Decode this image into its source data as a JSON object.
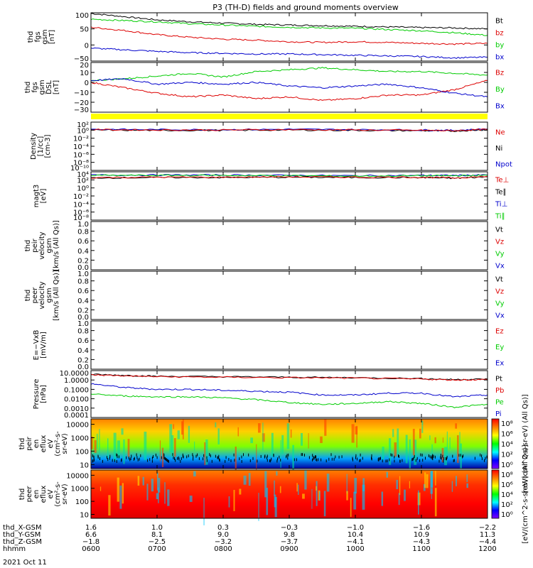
{
  "title": "P3 (TH-D) fields and ground moments overview",
  "date_label": "2021 Oct 11",
  "chart_data": [
    {
      "type": "line",
      "panel": "fgs-gsm",
      "ylabel": [
        "thd",
        "fgs",
        "gsm",
        "[nT]"
      ],
      "yticks": [
        "100",
        "50",
        "0",
        "−50"
      ],
      "ylim": [
        -50,
        100
      ],
      "legend": [
        {
          "name": "Bt",
          "color": "#000000"
        },
        {
          "name": "bz",
          "color": "#dd0000"
        },
        {
          "name": "by",
          "color": "#00cc00"
        },
        {
          "name": "bx",
          "color": "#0000cc"
        }
      ],
      "series": [
        {
          "name": "Bt",
          "color": "#000000",
          "x": [
            6.0,
            6.5,
            7.0,
            7.5,
            8.0,
            8.5,
            9.0,
            9.5,
            10.0,
            10.5,
            11.0,
            11.5,
            12.0
          ],
          "y": [
            98,
            88,
            78,
            72,
            68,
            64,
            62,
            60,
            58,
            56,
            54,
            53,
            50
          ]
        },
        {
          "name": "bz",
          "color": "#dd0000",
          "x": [
            6.0,
            6.5,
            7.0,
            7.5,
            8.0,
            8.5,
            9.0,
            9.5,
            10.0,
            10.5,
            11.0,
            11.5,
            12.0
          ],
          "y": [
            55,
            45,
            32,
            24,
            18,
            15,
            10,
            8,
            10,
            8,
            5,
            3,
            5
          ]
        },
        {
          "name": "by",
          "color": "#00cc00",
          "x": [
            6.0,
            6.5,
            7.0,
            7.5,
            8.0,
            8.5,
            9.0,
            9.5,
            10.0,
            10.5,
            11.0,
            11.5,
            12.0
          ],
          "y": [
            80,
            76,
            72,
            66,
            62,
            58,
            55,
            53,
            52,
            48,
            44,
            38,
            30
          ]
        },
        {
          "name": "bx",
          "color": "#0000cc",
          "x": [
            6.0,
            6.5,
            7.0,
            7.5,
            8.0,
            8.5,
            9.0,
            9.5,
            10.0,
            10.5,
            11.0,
            11.5,
            12.0
          ],
          "y": [
            -10,
            -15,
            -20,
            -24,
            -26,
            -28,
            -28,
            -30,
            -32,
            -34,
            -36,
            -40,
            -38
          ]
        }
      ]
    },
    {
      "type": "line",
      "panel": "fgs-gsm-dsl",
      "ylabel": [
        "thd",
        "fgs",
        "gsm",
        "DSL",
        "[nT]"
      ],
      "yticks": [
        "20",
        "10",
        "0",
        "−10",
        "−20",
        "−30"
      ],
      "ylim": [
        -35,
        20
      ],
      "legend": [
        {
          "name": "Bz",
          "color": "#dd0000"
        },
        {
          "name": "By",
          "color": "#00cc00"
        },
        {
          "name": "Bx",
          "color": "#0000cc"
        }
      ],
      "series": [
        {
          "name": "Bz",
          "color": "#dd0000",
          "x": [
            6.0,
            6.5,
            7.0,
            7.5,
            8.0,
            8.5,
            9.0,
            9.5,
            10.0,
            10.5,
            11.0,
            11.5,
            12.0
          ],
          "y": [
            -2,
            -8,
            -14,
            -18,
            -16,
            -20,
            -18,
            -22,
            -20,
            -16,
            -16,
            -10,
            0
          ]
        },
        {
          "name": "By",
          "color": "#00cc00",
          "x": [
            6.0,
            6.5,
            7.0,
            7.5,
            8.0,
            8.5,
            9.0,
            9.5,
            10.0,
            10.5,
            11.0,
            11.5,
            12.0
          ],
          "y": [
            0,
            2,
            5,
            8,
            4,
            10,
            12,
            14,
            12,
            10,
            10,
            8,
            6
          ]
        },
        {
          "name": "Bx",
          "color": "#0000cc",
          "x": [
            6.0,
            6.5,
            7.0,
            7.5,
            8.0,
            8.5,
            9.0,
            9.5,
            10.0,
            10.5,
            11.0,
            11.5,
            12.0
          ],
          "y": [
            0,
            2,
            -4,
            -2,
            -4,
            -2,
            -6,
            -8,
            -6,
            -4,
            -8,
            -14,
            -18
          ]
        }
      ]
    },
    {
      "type": "line",
      "panel": "density",
      "log": true,
      "ylabel": [
        "Density",
        "[1/cc]",
        "[cm-3]"
      ],
      "yticks": [
        "10²",
        "10⁰",
        "10⁻²",
        "10⁻⁴",
        "10⁻⁶",
        "10⁻⁸",
        "10⁻¹⁰"
      ],
      "ylim": [
        -11,
        2.5
      ],
      "legend": [
        {
          "name": "Ne",
          "color": "#dd0000"
        },
        {
          "name": "Ni",
          "color": "#000000"
        },
        {
          "name": "Npot",
          "color": "#0000cc"
        }
      ],
      "series": [
        {
          "name": "Ni",
          "color": "#000000",
          "x": [
            6.0,
            7.0,
            8.0,
            9.0,
            10.0,
            11.0,
            11.5,
            12.0
          ],
          "y": [
            0.3,
            0.2,
            0.2,
            0.3,
            0.2,
            0.1,
            0.0,
            0.4
          ]
        },
        {
          "name": "Npot",
          "color": "#0000cc",
          "x": [
            6.0,
            7.0,
            8.0,
            9.0,
            10.0,
            11.0,
            11.5,
            12.0
          ],
          "y": [
            0.5,
            0.4,
            0.4,
            0.5,
            0.4,
            0.3,
            0.2,
            0.6
          ]
        },
        {
          "name": "Ne",
          "color": "#dd0000",
          "x": [
            6.0,
            7.0,
            8.0,
            9.0,
            10.0,
            11.0,
            11.5,
            12.0
          ],
          "y": [
            0.4,
            0.3,
            0.3,
            0.4,
            0.3,
            0.2,
            0.1,
            0.5
          ]
        }
      ]
    },
    {
      "type": "line",
      "panel": "temperature",
      "log": true,
      "ylabel": [
        "magt3",
        "[eV]"
      ],
      "yticks": [
        "10⁴",
        "10²",
        "10⁰",
        "10⁻²",
        "10⁻⁴",
        "10⁻⁶",
        "10⁻⁸"
      ],
      "ylim": [
        -9,
        4.5
      ],
      "legend": [
        {
          "name": "Te⊥",
          "color": "#dd0000"
        },
        {
          "name": "Te∥",
          "color": "#000000"
        },
        {
          "name": "Ti⊥",
          "color": "#0000cc"
        },
        {
          "name": "Ti∥",
          "color": "#00cc00"
        }
      ],
      "series": [
        {
          "name": "Ti⊥",
          "color": "#0000cc",
          "x": [
            6.0,
            7.0,
            8.0,
            9.0,
            10.0,
            11.0,
            11.5,
            12.0
          ],
          "y": [
            3.6,
            3.6,
            3.6,
            3.5,
            3.4,
            3.5,
            3.5,
            3.6
          ]
        },
        {
          "name": "Ti∥",
          "color": "#00cc00",
          "x": [
            6.0,
            7.0,
            8.0,
            9.0,
            10.0,
            11.0,
            11.5,
            12.0
          ],
          "y": [
            3.5,
            3.5,
            3.5,
            3.4,
            3.3,
            3.4,
            3.4,
            3.5
          ]
        },
        {
          "name": "Te∥",
          "color": "#000000",
          "x": [
            6.0,
            7.0,
            8.0,
            9.0,
            10.0,
            11.0,
            11.5,
            12.0
          ],
          "y": [
            2.8,
            2.9,
            2.9,
            3.0,
            2.9,
            2.9,
            2.7,
            3.1
          ]
        },
        {
          "name": "Te⊥",
          "color": "#dd0000",
          "x": [
            6.0,
            7.0,
            8.0,
            9.0,
            10.0,
            11.0,
            11.5,
            12.0
          ],
          "y": [
            2.9,
            3.0,
            3.0,
            3.1,
            3.0,
            3.0,
            2.8,
            3.2
          ]
        }
      ]
    },
    {
      "type": "line",
      "panel": "velocity-peir",
      "ylabel": [
        "thd",
        "peir",
        "velocity",
        "gsm",
        "[km/s (All Qs)]"
      ],
      "yticks": [
        "1.0",
        "0.8",
        "0.6",
        "0.4",
        "0.2",
        "0.0"
      ],
      "ylim": [
        0,
        1
      ],
      "legend": [
        {
          "name": "Vt",
          "color": "#000000"
        },
        {
          "name": "Vz",
          "color": "#dd0000"
        },
        {
          "name": "Vy",
          "color": "#00cc00"
        },
        {
          "name": "Vx",
          "color": "#0000cc"
        }
      ],
      "series": []
    },
    {
      "type": "line",
      "panel": "velocity-peer",
      "ylabel": [
        "thd",
        "peer",
        "velocity",
        "gsm",
        "[km/s (All Qs)]"
      ],
      "yticks": [
        "1.0",
        "0.8",
        "0.6",
        "0.4",
        "0.2",
        "0.0"
      ],
      "ylim": [
        0,
        1
      ],
      "legend": [
        {
          "name": "Vt",
          "color": "#000000"
        },
        {
          "name": "Vz",
          "color": "#dd0000"
        },
        {
          "name": "Vy",
          "color": "#00cc00"
        },
        {
          "name": "Vx",
          "color": "#0000cc"
        }
      ],
      "series": []
    },
    {
      "type": "line",
      "panel": "efield",
      "ylabel": [
        "E=−VxB",
        "[mV/m]"
      ],
      "yticks": [
        "1.0",
        "0.8",
        "0.6",
        "0.4",
        "0.2",
        "0.0"
      ],
      "ylim": [
        0,
        1
      ],
      "legend": [
        {
          "name": "Ez",
          "color": "#dd0000"
        },
        {
          "name": "Ey",
          "color": "#00cc00"
        },
        {
          "name": "Ex",
          "color": "#0000cc"
        }
      ],
      "series": []
    },
    {
      "type": "line",
      "panel": "pressure",
      "log": true,
      "ylabel": [
        "Pressure",
        "[nPa]"
      ],
      "yticks": [
        "10.0000",
        "1.0000",
        "0.1000",
        "0.0100",
        "0.0010",
        "0.0001"
      ],
      "ylim": [
        -4,
        1
      ],
      "legend": [
        {
          "name": "Pt",
          "color": "#000000"
        },
        {
          "name": "Pb",
          "color": "#dd0000"
        },
        {
          "name": "Pe",
          "color": "#00cc00"
        },
        {
          "name": "Pi",
          "color": "#0000cc"
        }
      ],
      "series": [
        {
          "name": "Pt",
          "color": "#000000",
          "x": [
            6.0,
            6.5,
            7.0,
            8.0,
            9.0,
            10.0,
            11.0,
            11.5,
            12.0
          ],
          "y": [
            0.6,
            0.5,
            0.4,
            0.35,
            0.3,
            0.25,
            0.15,
            0.05,
            0.1
          ]
        },
        {
          "name": "Pb",
          "color": "#dd0000",
          "x": [
            6.0,
            6.5,
            7.0,
            8.0,
            9.0,
            10.0,
            11.0,
            11.5,
            12.0
          ],
          "y": [
            0.55,
            0.45,
            0.35,
            0.3,
            0.25,
            0.2,
            0.1,
            0.0,
            0.05
          ]
        },
        {
          "name": "Pi",
          "color": "#0000cc",
          "x": [
            6.0,
            6.5,
            7.0,
            7.5,
            8.0,
            8.5,
            9.0,
            9.5,
            10.0,
            10.5,
            11.0,
            11.5,
            12.0
          ],
          "y": [
            -0.4,
            -0.8,
            -1.0,
            -1.0,
            -1.1,
            -1.2,
            -1.3,
            -1.6,
            -1.6,
            -1.4,
            -1.4,
            -1.8,
            -1.6
          ]
        },
        {
          "name": "Pe",
          "color": "#00cc00",
          "x": [
            6.0,
            6.5,
            7.0,
            7.5,
            8.0,
            8.5,
            9.0,
            9.5,
            10.0,
            10.5,
            11.0,
            11.5,
            12.0
          ],
          "y": [
            -1.5,
            -1.7,
            -1.8,
            -1.8,
            -1.9,
            -2.1,
            -2.4,
            -2.6,
            -2.5,
            -2.3,
            -2.5,
            -2.9,
            -2.6
          ]
        }
      ]
    },
    {
      "type": "heatmap",
      "panel": "peir-spectrogram",
      "ylabel": [
        "thd",
        "peir",
        "en",
        "eflux",
        "eV",
        "(cm²-s-",
        "sr-eV)"
      ],
      "yticks": [
        "10000",
        "1000",
        "100",
        "10"
      ],
      "ylim_log": [
        0.7,
        4.4
      ],
      "colorbar_ticks": [
        "10⁸",
        "10⁶",
        "10⁴",
        "10²",
        "10⁰"
      ],
      "colorbar_label": "[eV/(cm^2-s-sr-eV) (All Qs)]"
    },
    {
      "type": "heatmap",
      "panel": "peer-spectrogram",
      "ylabel": [
        "thd",
        "peer",
        "en",
        "eflux",
        "eV",
        "(cm²-s-",
        "sr-eV)"
      ],
      "yticks": [
        "10000",
        "1000",
        "100",
        "10"
      ],
      "ylim_log": [
        0.7,
        4.4
      ],
      "colorbar_ticks": [
        "10⁸",
        "10⁶",
        "10⁴",
        "10²",
        "10⁰"
      ],
      "colorbar_label": "[eV/(cm^2-s-sr-eV) (All Qs)]"
    }
  ],
  "time_axis": {
    "xlim": [
      6.0,
      12.0
    ],
    "ticks": [
      6.0,
      7.0,
      8.0,
      9.0,
      10.0,
      11.0,
      12.0
    ],
    "rows": [
      {
        "name": "thd_X-GSM",
        "values": [
          "1.6",
          "1.0",
          "0.3",
          "−0.3",
          "−1.0",
          "−1.6",
          "−2.2"
        ]
      },
      {
        "name": "thd_Y-GSM",
        "values": [
          "6.6",
          "8.1",
          "9.0",
          "9.8",
          "10.4",
          "10.9",
          "11.3"
        ]
      },
      {
        "name": "thd_Z-GSM",
        "values": [
          "−1.8",
          "−2.5",
          "−3.2",
          "−3.7",
          "−4.1",
          "−4.3",
          "−4.4"
        ]
      },
      {
        "name": "hhmm",
        "values": [
          "0600",
          "0700",
          "0800",
          "0900",
          "1000",
          "1100",
          "1200"
        ]
      }
    ]
  },
  "colors": {
    "yellow_bar": "#ffff00",
    "spectrogram_scale": [
      "#7f00ff",
      "#0000ff",
      "#00ffff",
      "#00ff00",
      "#ffff00",
      "#ff8000",
      "#ff0000"
    ]
  }
}
